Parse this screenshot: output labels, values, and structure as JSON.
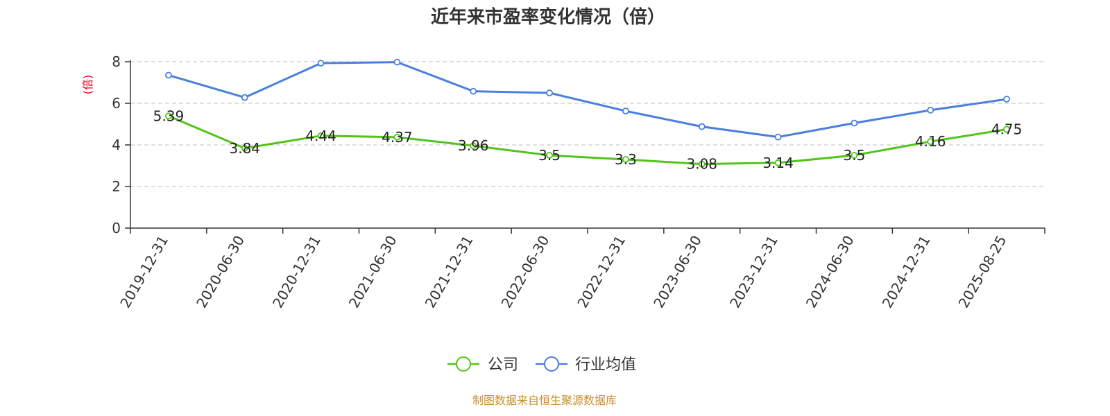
{
  "chart_data": {
    "type": "line",
    "title": "近年来市盈率变化情况（倍）",
    "ylabel": "(倍)",
    "xlabel": "",
    "ylim": [
      0,
      8
    ],
    "yticks": [
      0,
      2,
      4,
      6,
      8
    ],
    "grid": true,
    "legend_position": "bottom",
    "categories": [
      "2019-12-31",
      "2020-06-30",
      "2020-12-31",
      "2021-06-30",
      "2021-12-31",
      "2022-06-30",
      "2022-12-31",
      "2023-06-30",
      "2023-12-31",
      "2024-06-30",
      "2024-12-31",
      "2025-08-25"
    ],
    "series": [
      {
        "name": "公司",
        "color": "#52c41a",
        "values": [
          5.39,
          3.84,
          4.44,
          4.37,
          3.96,
          3.5,
          3.3,
          3.08,
          3.14,
          3.5,
          4.16,
          4.75
        ],
        "labels": [
          "5.39",
          "3.84",
          "4.44",
          "4.37",
          "3.96",
          "3.5",
          "3.3",
          "3.08",
          "3.14",
          "3.5",
          "4.16",
          "4.75"
        ]
      },
      {
        "name": "行业均值",
        "color": "#4a7fde",
        "values": [
          7.35,
          6.28,
          7.93,
          7.98,
          6.58,
          6.5,
          5.63,
          4.88,
          4.38,
          5.05,
          5.67,
          6.2
        ]
      }
    ],
    "source": "制图数据来自恒生聚源数据库"
  }
}
